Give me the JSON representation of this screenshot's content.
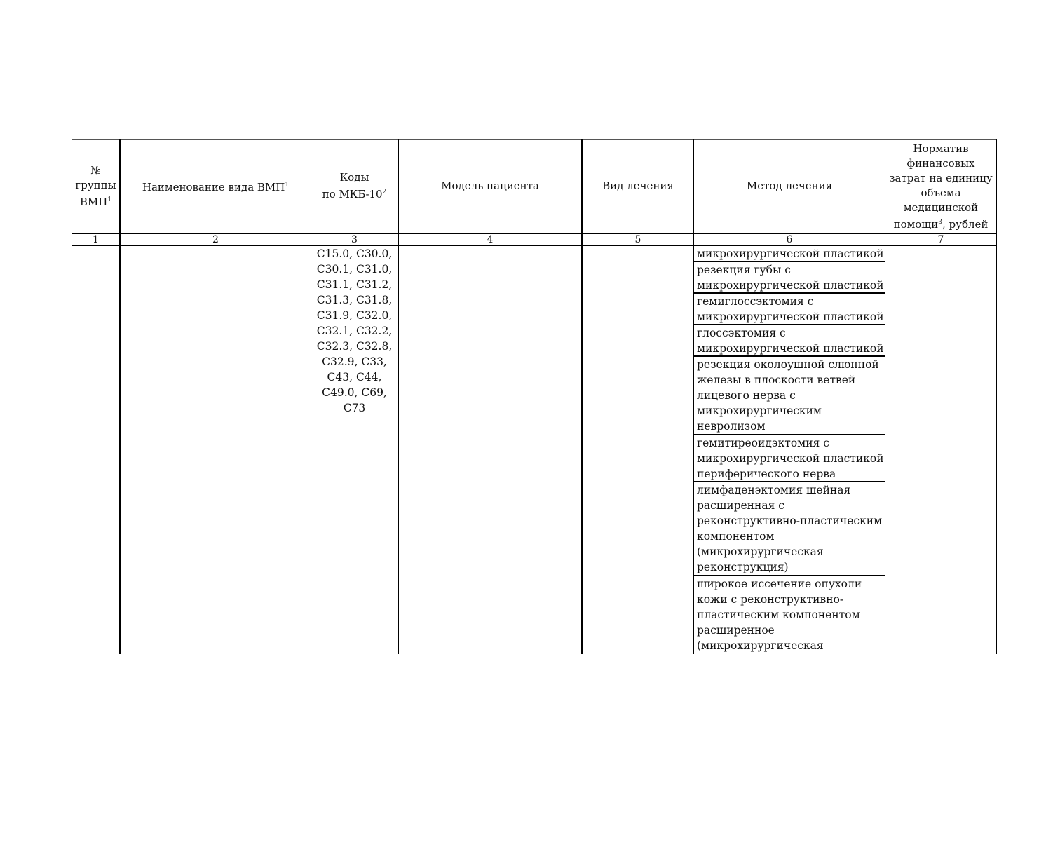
{
  "table": {
    "headers": [
      {
        "text": "№\nгруппы\nВМП",
        "sup": "1"
      },
      {
        "text": "Наименование вида ВМП",
        "sup": "1"
      },
      {
        "text": "Коды\nпо МКБ-10",
        "sup": "2"
      },
      {
        "text": "Модель пациента"
      },
      {
        "text": "Вид лечения"
      },
      {
        "text": "Метод лечения"
      },
      {
        "text": "Норматив\nфинансовых\nзатрат на единицу\nобъема\nмедицинской\nпомощи",
        "sup": "3",
        "suffix": ", рублей"
      }
    ],
    "column_numbers": [
      "1",
      "2",
      "3",
      "4",
      "5",
      "6",
      "7"
    ],
    "row": {
      "codes": "C15.0, C30.0,\nC30.1, C31.0,\nC31.1, C31.2,\nC31.3, C31.8,\nC31.9, C32.0,\nC32.1, C32.2,\nC32.3, C32.8,\nC32.9, C33,\nC43, C44,\nC49.0, C69,\nC73",
      "methods": [
        "микрохирургической пластикой",
        "резекция губы с\nмикрохирургической пластикой",
        "гемиглоссэктомия с\nмикрохирургической пластикой",
        "глоссэктомия с\nмикрохирургической пластикой",
        "резекция околоушной слюнной\nжелезы в плоскости ветвей\nлицевого нерва с\nмикрохирургическим\nневролизом",
        "гемитиреоидэктомия с\nмикрохирургической пластикой\nпериферического нерва",
        "лимфаденэктомия шейная\nрасширенная с\nреконструктивно-пластическим\nкомпонентом\n(микрохирургическая\nреконструкция)",
        "широкое иссечение опухоли\nкожи с реконструктивно-\nпластическим компонентом\nрасширенное\n(микрохирургическая"
      ]
    }
  }
}
